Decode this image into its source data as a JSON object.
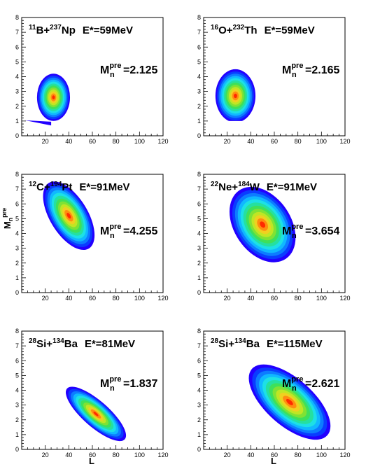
{
  "chart_data": {
    "type": "heatmap",
    "xlabel": "L",
    "ylabel": "M_n^pre",
    "xlim": [
      0,
      120
    ],
    "ylim": [
      0,
      8
    ],
    "xticks": [
      "20",
      "40",
      "60",
      "80",
      "100",
      "120"
    ],
    "yticks": [
      "0",
      "1",
      "2",
      "3",
      "4",
      "5",
      "6",
      "7",
      "8"
    ],
    "levels": [
      "#2200ff",
      "#0a3cff",
      "#0d7cff",
      "#10b8ff",
      "#1de0e6",
      "#25e0a0",
      "#3ee05a",
      "#7fe235",
      "#c0e624",
      "#f0d020",
      "#ff8c10",
      "#ff2a00"
    ],
    "panels": [
      {
        "projectile_mass": "11",
        "projectile": "B+",
        "target_mass": "237",
        "target": "Np",
        "energy": "E*=59MeV",
        "multiplicity": "=2.125",
        "blob": {
          "cx": 27,
          "cy": 2.6,
          "sx": 14,
          "sy": 1.6,
          "rot": 0,
          "clip_low": 1.0,
          "tail_left": true
        }
      },
      {
        "projectile_mass": "16",
        "projectile": "O+",
        "target_mass": "232",
        "target": "Th",
        "energy": "E*=59MeV",
        "multiplicity": "=2.165",
        "blob": {
          "cx": 27,
          "cy": 2.7,
          "sx": 17,
          "sy": 1.8,
          "rot": 0,
          "clip_low": 1.0,
          "tail_left": false
        }
      },
      {
        "projectile_mass": "12",
        "projectile": "C+",
        "target_mass": "194",
        "target": "Pt",
        "energy": "E*=91MeV",
        "multiplicity": "=4.255",
        "blob": {
          "cx": 40,
          "cy": 5.2,
          "sx": 16,
          "sy": 2.6,
          "rot": -0.55,
          "clip_low": 0,
          "tail_left": false
        }
      },
      {
        "projectile_mass": "22",
        "projectile": "Ne+",
        "target_mass": "184",
        "target": "W",
        "energy": "E*=91MeV",
        "multiplicity": "=3.654",
        "blob": {
          "cx": 50,
          "cy": 4.6,
          "sx": 24,
          "sy": 2.8,
          "rot": -0.6,
          "clip_low": 0,
          "tail_left": false
        }
      },
      {
        "projectile_mass": "28",
        "projectile": "Si+",
        "target_mass": "134",
        "target": "Ba",
        "energy": "E*=81MeV",
        "multiplicity": "=1.837",
        "blob": {
          "cx": 63,
          "cy": 2.4,
          "sx": 11,
          "sy": 2.6,
          "rot": -0.85,
          "clip_low": 0,
          "tail_left": false
        }
      },
      {
        "projectile_mass": "28",
        "projectile": "Si+",
        "target_mass": "134",
        "target": "Ba",
        "energy": "E*=115MeV",
        "multiplicity": "=2.621",
        "blob": {
          "cx": 73,
          "cy": 3.2,
          "sx": 20,
          "sy": 3.4,
          "rot": -0.85,
          "clip_low": 0,
          "tail_left": false
        }
      }
    ]
  }
}
